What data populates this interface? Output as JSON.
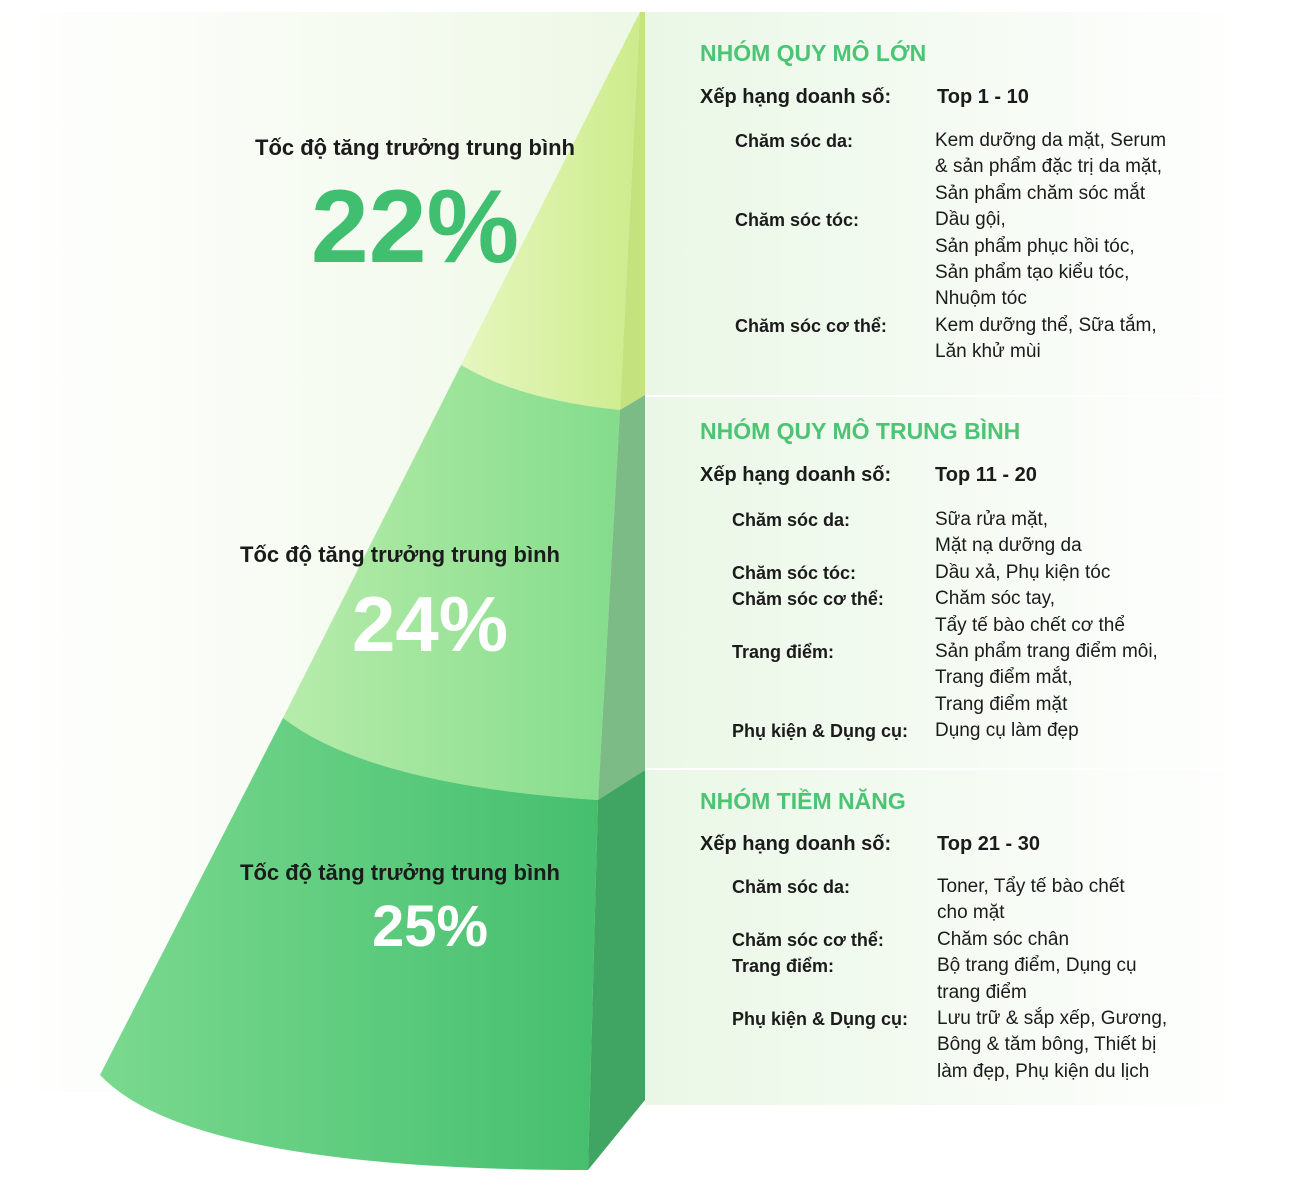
{
  "tiers": [
    {
      "growth_label": "Tốc độ tăng trưởng trung bình",
      "growth_value": "22%",
      "group_title": "NHÓM QUY MÔ LỚN",
      "ranking_label": "Xếp hạng doanh số:",
      "ranking_value": "Top 1 - 10",
      "categories": [
        {
          "name": "Chăm sóc da:",
          "items": [
            "Kem dưỡng da mặt, Serum",
            "& sản phẩm đặc trị da mặt,",
            "Sản phẩm chăm sóc mắt"
          ]
        },
        {
          "name": "Chăm sóc tóc:",
          "items": [
            "Dầu gội,",
            "Sản phẩm phục hồi tóc,",
            "Sản phẩm tạo kiểu tóc,",
            "Nhuộm tóc"
          ]
        },
        {
          "name": "Chăm sóc cơ thể:",
          "items": [
            "Kem dưỡng thể, Sữa tắm,",
            "Lăn khử mùi"
          ]
        }
      ]
    },
    {
      "growth_label": "Tốc độ tăng trưởng trung bình",
      "growth_value": "24%",
      "group_title": "NHÓM QUY MÔ TRUNG BÌNH",
      "ranking_label": "Xếp hạng doanh số:",
      "ranking_value": "Top 11 - 20",
      "categories": [
        {
          "name": "Chăm sóc da:",
          "items": [
            "Sữa rửa mặt,",
            "Mặt nạ dưỡng da"
          ]
        },
        {
          "name": "Chăm sóc tóc:",
          "items": [
            "Dầu xả, Phụ kiện tóc"
          ]
        },
        {
          "name": "Chăm sóc cơ thể:",
          "items": [
            "Chăm sóc tay,",
            "Tẩy tế bào chết cơ thể"
          ]
        },
        {
          "name": "Trang điểm:",
          "items": [
            "Sản phẩm trang điểm môi,",
            "Trang điểm mắt,",
            "Trang điểm mặt"
          ]
        },
        {
          "name": "Phụ kiện & Dụng cụ:",
          "items": [
            "Dụng cụ làm đẹp"
          ]
        }
      ]
    },
    {
      "growth_label": "Tốc độ tăng trưởng trung bình",
      "growth_value": "25%",
      "group_title": "NHÓM TIỀM NĂNG",
      "ranking_label": "Xếp hạng doanh số:",
      "ranking_value": "Top 21 - 30",
      "categories": [
        {
          "name": "Chăm sóc da:",
          "items": [
            "Toner, Tẩy tế bào chết",
            "cho mặt"
          ]
        },
        {
          "name": "Chăm sóc cơ thể:",
          "items": [
            "Chăm sóc chân"
          ]
        },
        {
          "name": "Trang điểm:",
          "items": [
            "Bộ trang điểm, Dụng cụ",
            "trang điểm"
          ]
        },
        {
          "name": "Phụ kiện & Dụng cụ:",
          "items": [
            "Lưu trữ & sắp xếp, Gương,",
            "Bông & tăm bông, Thiết bị",
            "làm đẹp, Phụ kiện du lịch"
          ]
        }
      ]
    }
  ]
}
